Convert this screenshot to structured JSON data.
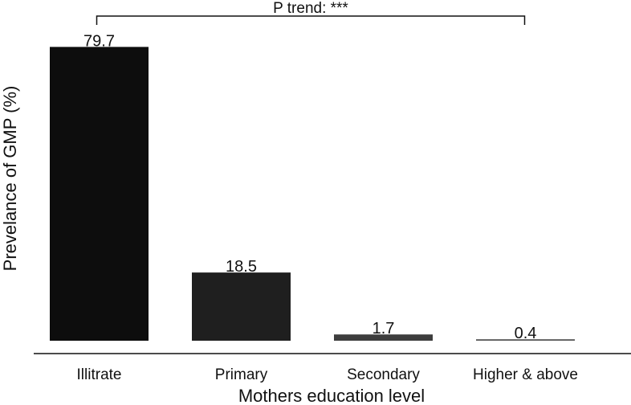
{
  "chart_data": {
    "type": "bar",
    "categories": [
      "Illitrate",
      "Primary",
      "Secondary",
      "Higher & above"
    ],
    "values": [
      79.7,
      18.5,
      1.7,
      0.4
    ],
    "value_labels": [
      "79.7",
      "18.5",
      "1.7",
      "0.4"
    ],
    "xlabel": "Mothers education level",
    "ylabel": "Prevelance of GMP (%)",
    "ylim": [
      0,
      80
    ],
    "grid": false,
    "bar_colors": [
      "#0d0d0d",
      "#1f1f1f",
      "#3d3d3d",
      "#5a5a5a"
    ],
    "annotation": {
      "text": "P trend: ***",
      "from_category": "Illitrate",
      "to_category": "Higher & above"
    }
  }
}
